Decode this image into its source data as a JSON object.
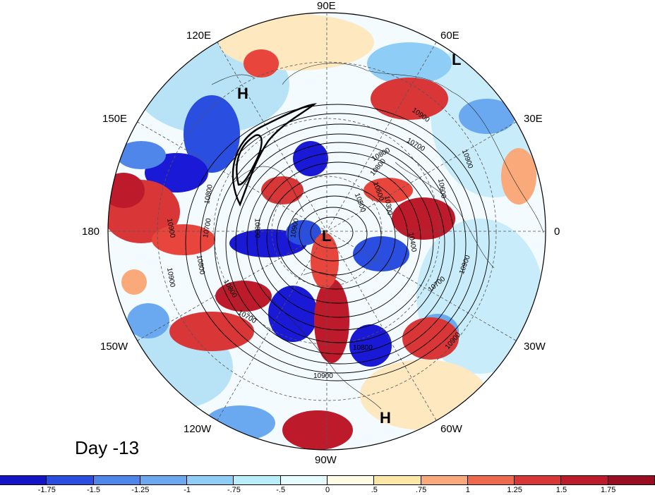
{
  "map": {
    "projection": "north-polar-stereographic",
    "longitude_labels": [
      "90E",
      "60E",
      "30E",
      "0",
      "30W",
      "60W",
      "90W",
      "120W",
      "150W",
      "180",
      "150E",
      "120E"
    ],
    "pressure_markers": [
      "L",
      "H",
      "L",
      "H"
    ],
    "contour_labels": [
      "10900",
      "10900",
      "10800",
      "10700",
      "10600",
      "10400",
      "10300",
      "10800",
      "10900",
      "10700",
      "10600",
      "10500",
      "10800",
      "10900",
      "10900",
      "10700",
      "10800",
      "10900",
      "10800",
      "10800",
      "10900",
      "10700",
      "10800",
      "10900"
    ],
    "anomaly_colors": {
      "strong_positive": "#b5142a",
      "positive": "#e8453c",
      "weak_positive": "#f9a57a",
      "neutral": "#fdf4dc",
      "weak_negative": "#aee1f5",
      "negative": "#4a90e2",
      "strong_negative": "#1a1ad6"
    }
  },
  "panel_label": "Day -13",
  "colorbar": {
    "ticks": [
      "-1.75",
      "-1.5",
      "-1.25",
      "-1",
      "-.75",
      "-.5",
      "0",
      ".5",
      ".75",
      "1",
      "1.25",
      "1.5",
      "1.75"
    ],
    "colors": [
      "#1414c8",
      "#2a4fe0",
      "#4f86ea",
      "#6aa9f0",
      "#8ecdf5",
      "#b8eefa",
      "#e6fbff",
      "#fffbe4",
      "#fde7a5",
      "#f9a97a",
      "#ef6a4c",
      "#d93638",
      "#bd1a2b",
      "#9b0e21"
    ]
  }
}
